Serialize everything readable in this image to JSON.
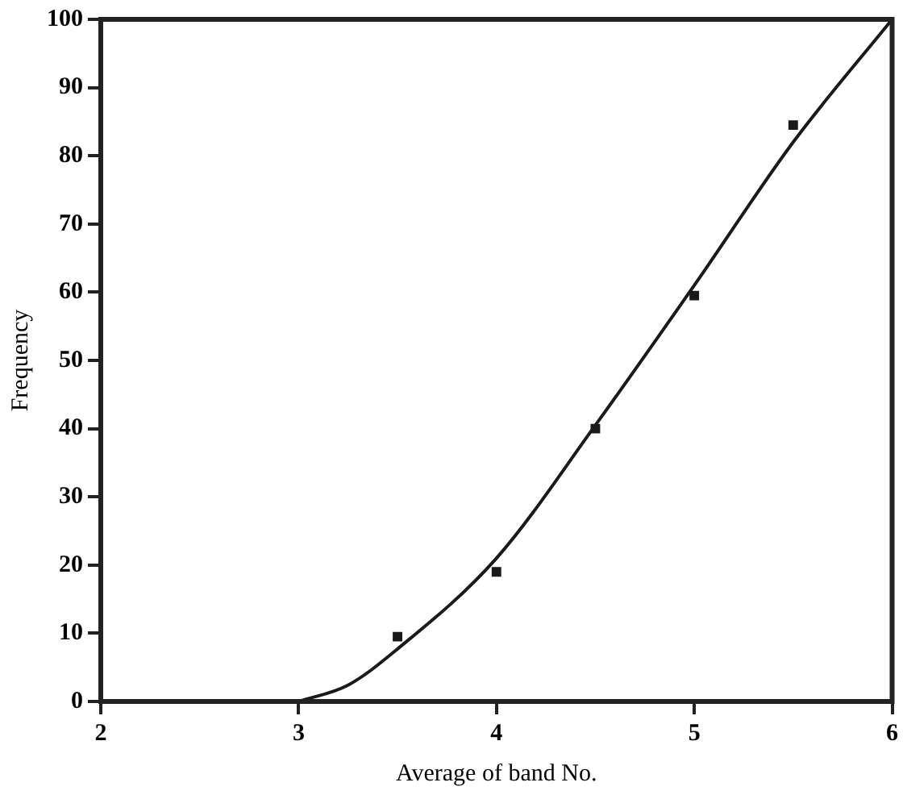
{
  "chart_data": {
    "type": "scatter",
    "xlabel": "Average of band No.",
    "ylabel": "Frequency",
    "xlim": [
      2,
      6
    ],
    "xticks": [
      2,
      3,
      4,
      5,
      6
    ],
    "ylim": [
      0,
      100
    ],
    "yticks": [
      0,
      10,
      20,
      30,
      40,
      50,
      60,
      70,
      80,
      90,
      100
    ],
    "grid": false,
    "legend": false,
    "marker": "square",
    "x": [
      3.5,
      4,
      4.5,
      5,
      5.5
    ],
    "series": [
      {
        "color": "#1a1a1a",
        "values": [
          9.5,
          19,
          40,
          59.5,
          84.5
        ]
      },
      {
        "type": "line",
        "color": "#1a1a1a",
        "marker": "none",
        "x": [
          3,
          3.25,
          3.5,
          4,
          4.5,
          5,
          5.5,
          6
        ],
        "values": [
          0,
          2.4,
          7.7,
          21,
          40.5,
          61,
          82,
          100
        ]
      }
    ]
  }
}
